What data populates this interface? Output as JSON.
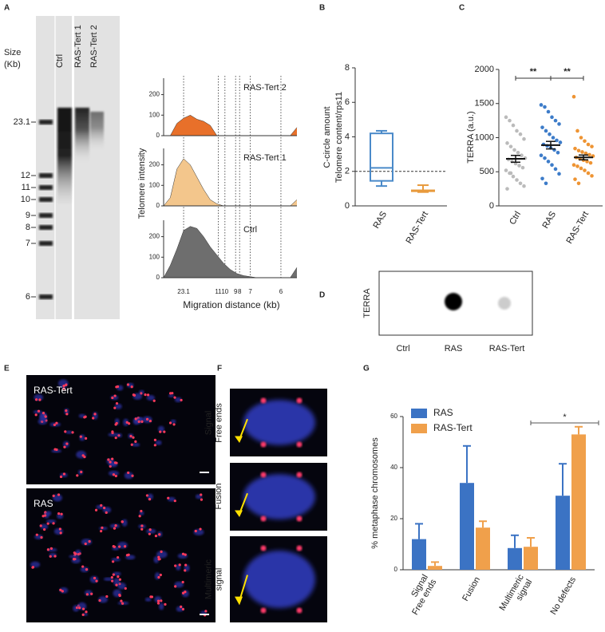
{
  "panel_labels": [
    "A",
    "B",
    "C",
    "D",
    "E",
    "F",
    "G"
  ],
  "gel": {
    "size_label": [
      "Size",
      "(Kb)"
    ],
    "lanes": [
      "Ctrl",
      "RAS-Tert 1",
      "RAS-Tert 2"
    ],
    "markers": [
      23.1,
      12,
      11,
      10,
      9,
      8,
      7,
      6
    ]
  },
  "blot": {
    "label": "TERRA",
    "lanes": [
      "Ctrl",
      "RAS",
      "RAS-Tert"
    ]
  },
  "micrographs": {
    "labels": [
      "RAS-Tert",
      "RAS"
    ]
  },
  "closeups": {
    "labels": [
      [
        "Signal",
        "Free ends"
      ],
      [
        "Fusion"
      ],
      [
        "Multimeric",
        "signal"
      ]
    ]
  },
  "chart_data": [
    {
      "type": "area",
      "ylabel": "Telomere intensity",
      "xlabel": "Migration distance (kb)",
      "x": [
        0,
        5,
        10,
        15,
        20,
        25,
        30,
        35,
        40,
        45,
        50,
        55,
        60,
        65,
        70,
        75,
        80,
        85,
        90,
        95,
        100
      ],
      "xlim": [
        0,
        100
      ],
      "xticks": [
        {
          "value": 15,
          "label": "23.1"
        },
        {
          "value": 41,
          "label": "11"
        },
        {
          "value": 46,
          "label": "10"
        },
        {
          "value": 54,
          "label": "9"
        },
        {
          "value": 57,
          "label": "8"
        },
        {
          "value": 65,
          "label": "7"
        },
        {
          "value": 88,
          "label": "6"
        }
      ],
      "ylim": [
        0,
        280
      ],
      "yticks": [
        0,
        100,
        200
      ],
      "series": [
        {
          "name": "RAS-Tert 2",
          "color": "#e8702a",
          "values": [
            0,
            0,
            60,
            85,
            100,
            80,
            70,
            50,
            0,
            0,
            0,
            0,
            0,
            0,
            0,
            0,
            0,
            0,
            0,
            0,
            40
          ]
        },
        {
          "name": "RAS-Tert 1",
          "color": "#f3c68c",
          "values": [
            0,
            40,
            180,
            230,
            200,
            140,
            80,
            30,
            10,
            0,
            0,
            0,
            0,
            0,
            0,
            0,
            0,
            0,
            0,
            0,
            30
          ]
        },
        {
          "name": "Ctrl",
          "color": "#6e6e6e",
          "values": [
            0,
            60,
            140,
            230,
            250,
            240,
            200,
            150,
            110,
            70,
            40,
            20,
            10,
            5,
            0,
            0,
            0,
            0,
            0,
            0,
            50
          ]
        }
      ]
    },
    {
      "type": "box",
      "ylabel": [
        "C-circle amount",
        "Telomere content/rps11"
      ],
      "categories": [
        "RAS",
        "RAS-Tert"
      ],
      "colors": [
        "#4a8ac9",
        "#e89a3c"
      ],
      "min": [
        1.15,
        0.8
      ],
      "q1": [
        1.45,
        0.85
      ],
      "median": [
        2.2,
        0.87
      ],
      "q3": [
        4.2,
        0.9
      ],
      "max": [
        4.35,
        1.2
      ],
      "reference_line": 2,
      "ylim": [
        0,
        8
      ],
      "yticks": [
        0,
        2,
        4,
        6,
        8
      ]
    },
    {
      "type": "strip",
      "ylabel": "TERRA (a.u.)",
      "categories": [
        "Ctrl",
        "RAS",
        "RAS-Tert"
      ],
      "colors": [
        "#bbbbbb",
        "#3d7cc9",
        "#ee9433"
      ],
      "values": [
        [
          1300,
          1250,
          1180,
          1100,
          1050,
          980,
          920,
          870,
          820,
          780,
          740,
          700,
          680,
          650,
          620,
          590,
          560,
          520,
          480,
          430,
          380,
          330,
          290,
          250,
          480
        ],
        [
          1480,
          1450,
          1380,
          1300,
          1250,
          1200,
          1150,
          1100,
          1050,
          1000,
          960,
          930,
          900,
          880,
          850,
          820,
          780,
          740,
          700,
          650,
          600,
          540,
          470,
          400,
          330
        ],
        [
          1600,
          1100,
          1000,
          950,
          900,
          870,
          840,
          810,
          790,
          770,
          750,
          730,
          710,
          690,
          670,
          650,
          630,
          600,
          580,
          550,
          520,
          480,
          440,
          390,
          330
        ]
      ],
      "means": [
        690,
        890,
        710
      ],
      "sem": [
        50,
        55,
        35
      ],
      "ylim": [
        0,
        2000
      ],
      "yticks": [
        0,
        500,
        1000,
        1500,
        2000
      ],
      "annotations": [
        "**",
        "**"
      ]
    },
    {
      "type": "bar",
      "ylabel": "% metaphase chromosomes",
      "categories": [
        [
          "Signal",
          "Free ends"
        ],
        [
          "Fusion"
        ],
        [
          "Multimeric",
          "signal"
        ],
        [
          "No defects"
        ]
      ],
      "series": [
        {
          "name": "RAS",
          "color": "#3b73c4",
          "values": [
            12,
            34,
            8.5,
            29
          ],
          "errors": [
            6,
            14.5,
            5,
            12.5
          ]
        },
        {
          "name": "RAS-Tert",
          "color": "#f0a04b",
          "values": [
            1.5,
            16.5,
            9,
            53
          ],
          "errors": [
            1.5,
            2.5,
            3.5,
            3
          ]
        }
      ],
      "ylim": [
        0,
        60
      ],
      "yticks": [
        0,
        20,
        40,
        60
      ],
      "annotation": "*",
      "legend": "upper left"
    }
  ]
}
